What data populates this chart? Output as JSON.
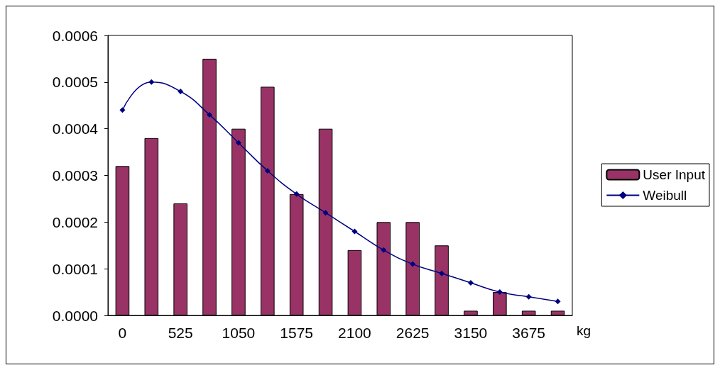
{
  "chart_data": {
    "type": "bar",
    "xlabel": "kg",
    "categories": [
      "0",
      null,
      "525",
      null,
      "1050",
      null,
      "1575",
      null,
      "2100",
      null,
      "2625",
      null,
      "3150",
      null,
      "3675",
      null
    ],
    "series": [
      {
        "name": "User Input",
        "color": "#993366",
        "values": [
          0.00032,
          0.00038,
          0.00024,
          0.00055,
          0.0004,
          0.00049,
          0.00026,
          0.0004,
          0.00014,
          0.0002,
          0.0002,
          0.00015,
          1e-05,
          5e-05,
          1e-05,
          1e-05
        ]
      },
      {
        "name": "Weibull",
        "type": "line",
        "color": "#000080",
        "marker": "diamond",
        "values": [
          0.00044,
          0.0005,
          0.00048,
          0.00043,
          0.00037,
          0.00031,
          0.00026,
          0.00022,
          0.00018,
          0.00014,
          0.00011,
          9e-05,
          7e-05,
          5e-05,
          4e-05,
          3e-05
        ]
      }
    ],
    "ylim": [
      0,
      0.0006
    ],
    "yticks": [
      {
        "value": 0,
        "label": "0.0000"
      },
      {
        "value": 0.0001,
        "label": "0.0001"
      },
      {
        "value": 0.0002,
        "label": "0.0002"
      },
      {
        "value": 0.0003,
        "label": "0.0003"
      },
      {
        "value": 0.0004,
        "label": "0.0004"
      },
      {
        "value": 0.0005,
        "label": "0.0005"
      },
      {
        "value": 0.0006,
        "label": "0.0006"
      }
    ],
    "grid": false,
    "legend": "right"
  }
}
